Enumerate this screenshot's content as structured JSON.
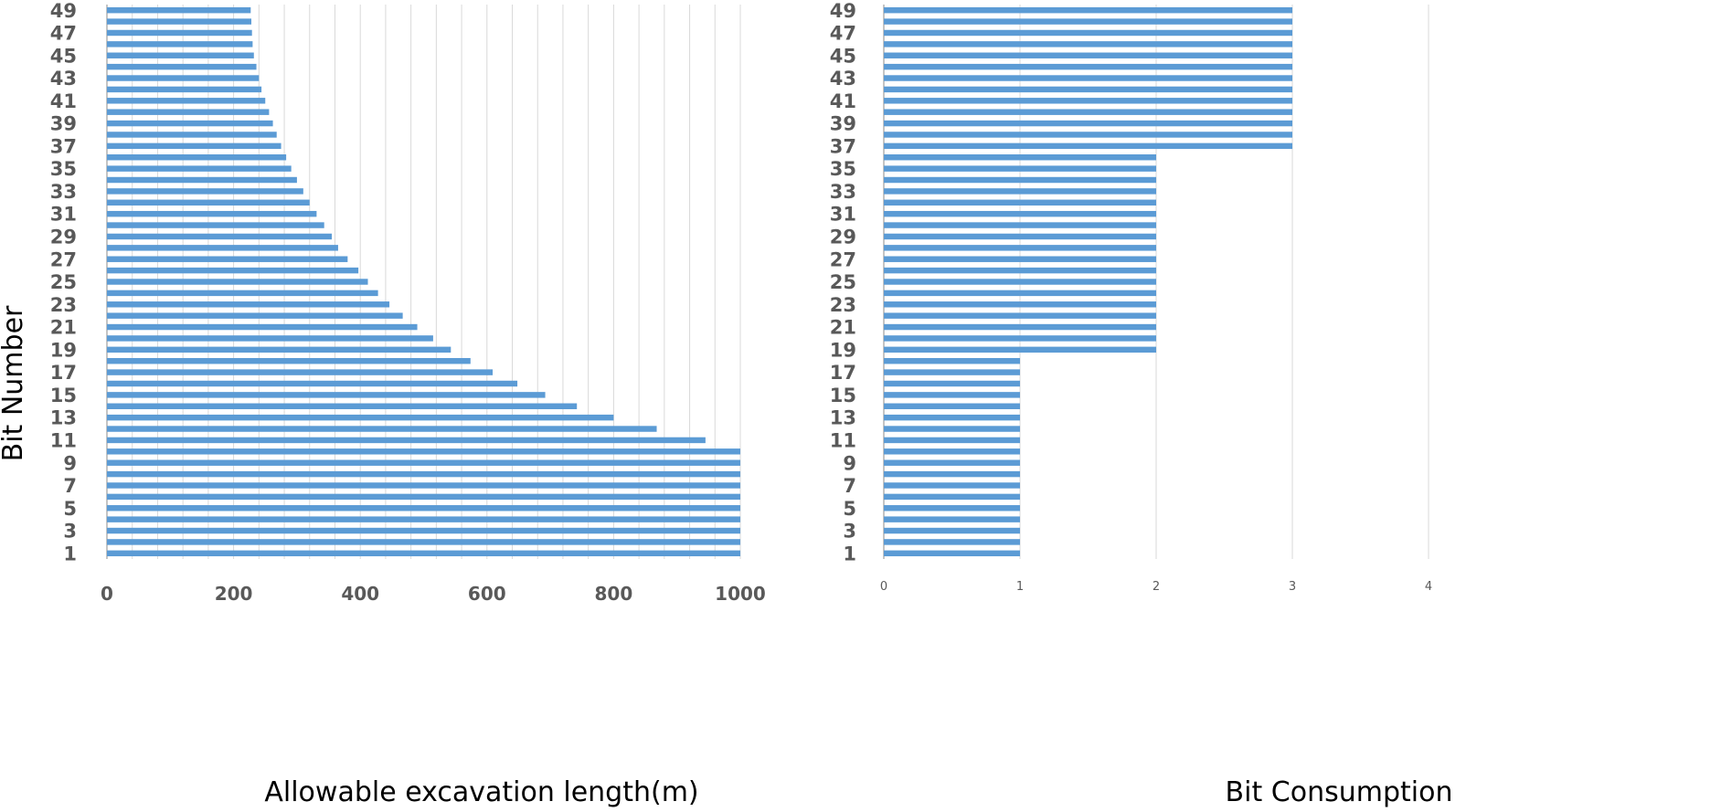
{
  "chart_data": [
    {
      "type": "bar",
      "orientation": "horizontal",
      "categories": [
        1,
        2,
        3,
        4,
        5,
        6,
        7,
        8,
        9,
        10,
        11,
        12,
        13,
        14,
        15,
        16,
        17,
        18,
        19,
        20,
        21,
        22,
        23,
        24,
        25,
        26,
        27,
        28,
        29,
        30,
        31,
        32,
        33,
        34,
        35,
        36,
        37,
        38,
        39,
        40,
        41,
        42,
        43,
        44,
        45,
        46,
        47,
        48,
        49
      ],
      "values": [
        1000,
        1000,
        1000,
        1000,
        1000,
        1000,
        1000,
        1000,
        1000,
        1000,
        945,
        868,
        800,
        742,
        692,
        648,
        609,
        574,
        543,
        515,
        490,
        467,
        446,
        428,
        412,
        397,
        380,
        365,
        355,
        343,
        331,
        320,
        310,
        300,
        291,
        283,
        275,
        268,
        262,
        256,
        250,
        244,
        240,
        236,
        232,
        230,
        229,
        228,
        227
      ],
      "xlabel": "Allowable excavation length(m)",
      "ylabel": "Bit Number",
      "xlim": [
        0,
        1000
      ],
      "xticks": [
        "0",
        "200",
        "400",
        "600",
        "800",
        "1000"
      ],
      "yticks": [
        "1",
        "3",
        "5",
        "7",
        "9",
        "11",
        "13",
        "15",
        "17",
        "19",
        "21",
        "23",
        "25",
        "27",
        "29",
        "31",
        "33",
        "35",
        "37",
        "39",
        "41",
        "43",
        "45",
        "47",
        "49"
      ],
      "grid": "vertical",
      "color": "#5b9bd5"
    },
    {
      "type": "bar",
      "orientation": "horizontal",
      "categories": [
        1,
        2,
        3,
        4,
        5,
        6,
        7,
        8,
        9,
        10,
        11,
        12,
        13,
        14,
        15,
        16,
        17,
        18,
        19,
        20,
        21,
        22,
        23,
        24,
        25,
        26,
        27,
        28,
        29,
        30,
        31,
        32,
        33,
        34,
        35,
        36,
        37,
        38,
        39,
        40,
        41,
        42,
        43,
        44,
        45,
        46,
        47,
        48,
        49
      ],
      "values": [
        1,
        1,
        1,
        1,
        1,
        1,
        1,
        1,
        1,
        1,
        1,
        1,
        1,
        1,
        1,
        1,
        1,
        1,
        2,
        2,
        2,
        2,
        2,
        2,
        2,
        2,
        2,
        2,
        2,
        2,
        2,
        2,
        2,
        2,
        2,
        2,
        3,
        3,
        3,
        3,
        3,
        3,
        3,
        3,
        3,
        3,
        3,
        3,
        3
      ],
      "xlabel": "Bit Consumption",
      "ylabel": "",
      "xlim": [
        0,
        4
      ],
      "xticks": [
        "0",
        "1",
        "2",
        "3",
        "4"
      ],
      "yticks": [
        "1",
        "3",
        "5",
        "7",
        "9",
        "11",
        "13",
        "15",
        "17",
        "19",
        "21",
        "23",
        "25",
        "27",
        "29",
        "31",
        "33",
        "35",
        "37",
        "39",
        "41",
        "43",
        "45",
        "47",
        "49"
      ],
      "grid": "vertical",
      "color": "#5b9bd5"
    }
  ]
}
